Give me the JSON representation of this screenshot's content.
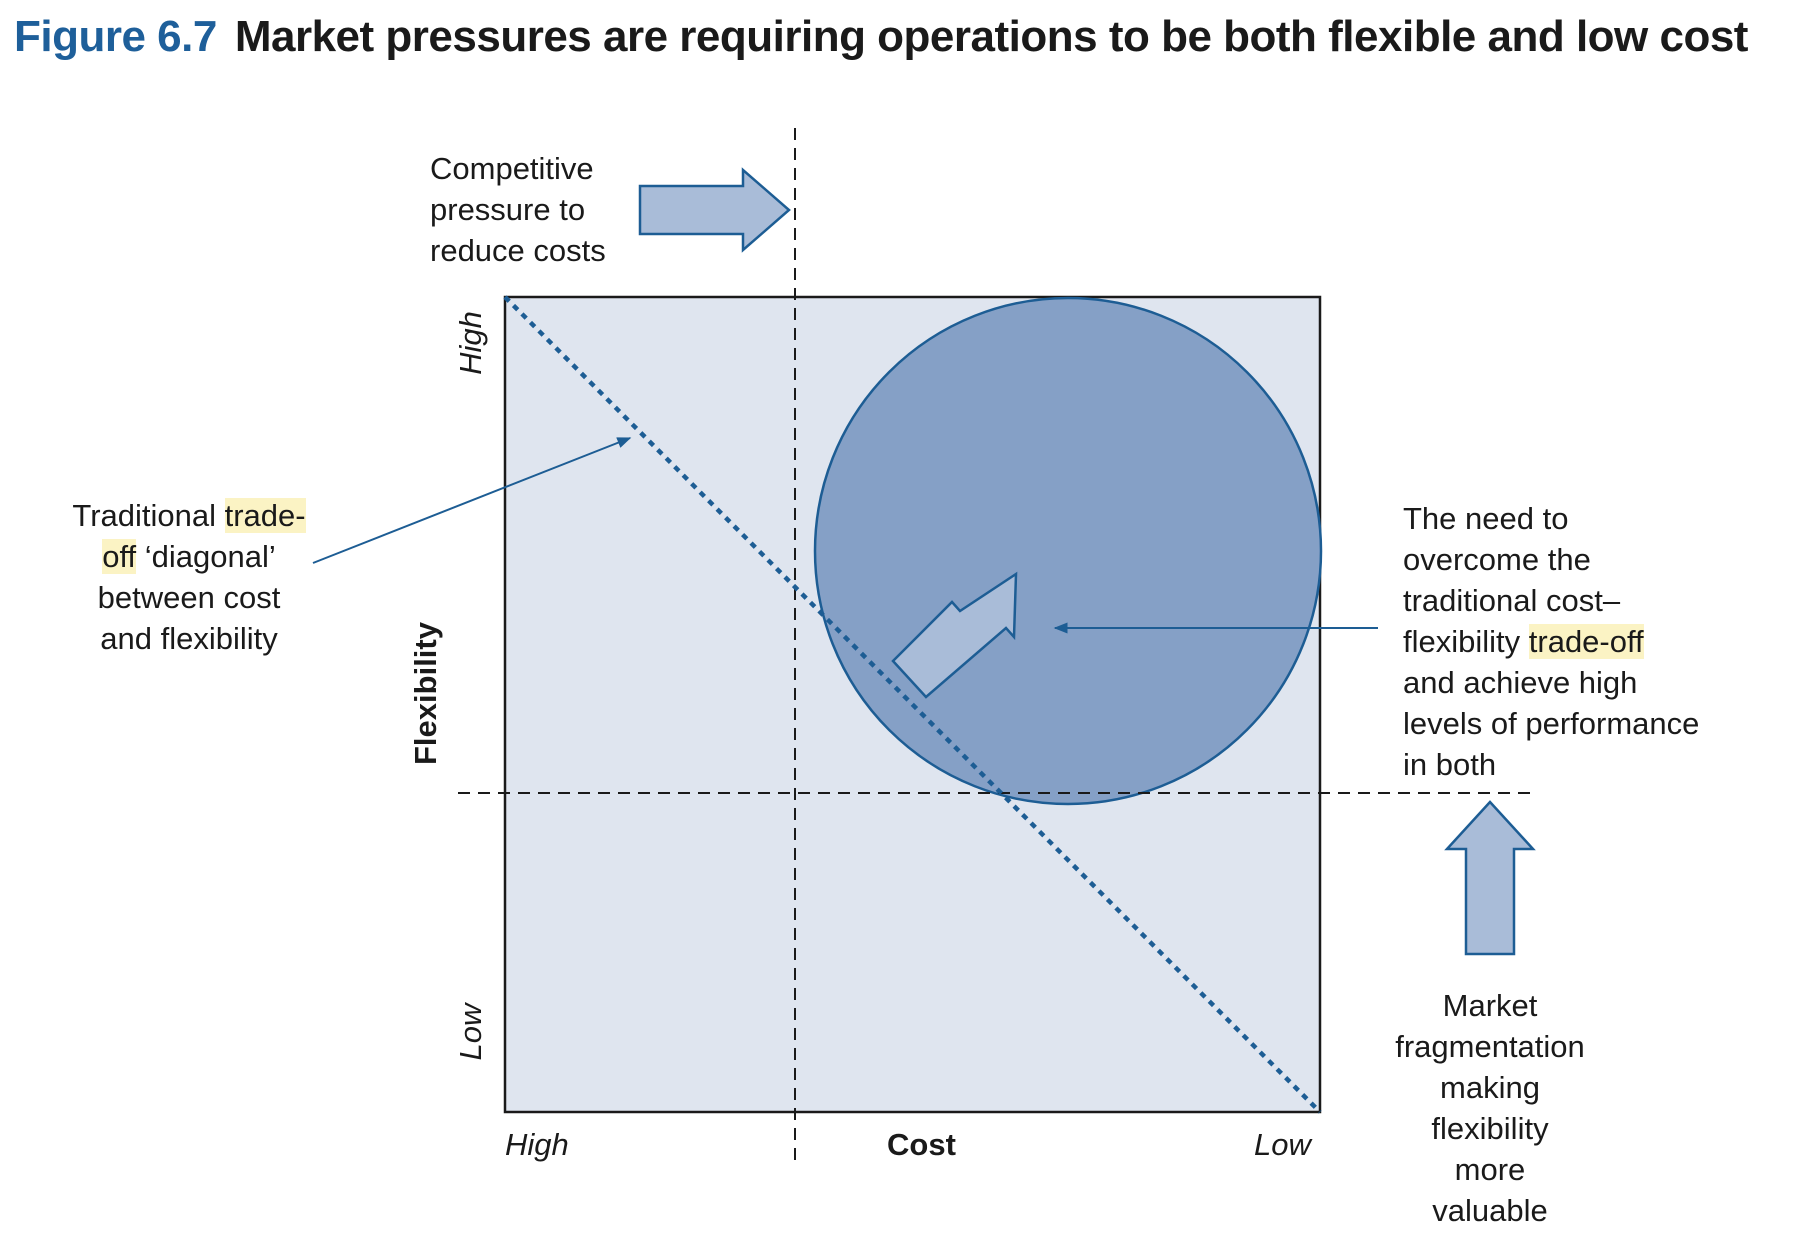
{
  "figure": {
    "label": "Figure 6.7",
    "title": "Market pressures are requiring operations to be both flexible and low cost"
  },
  "axes": {
    "x_title": "Cost",
    "x_left": "High",
    "x_right": "Low",
    "y_title": "Flexibility",
    "y_top": "High",
    "y_bottom": "Low"
  },
  "annotations": {
    "competitive": {
      "line1": "Competitive",
      "line2": "pressure to",
      "line3": "reduce costs"
    },
    "tradeoff": {
      "line1_a": "Traditional ",
      "line1_hl": "trade-",
      "line2_hl": "off",
      "line2_b": " ‘diagonal’",
      "line3": "between cost",
      "line4": "and flexibility"
    },
    "need": {
      "line1": "The need to",
      "line2": "overcome the",
      "line3": "traditional cost–",
      "line4_a": "flexibility ",
      "line4_hl": "trade-off",
      "line5": "and achieve high",
      "line6": "levels of performance",
      "line7": "in both"
    },
    "market": {
      "line1": "Market",
      "line2": "fragmentation",
      "line3": "making",
      "line4": "flexibility",
      "line5": "more",
      "line6": "valuable"
    }
  },
  "colors": {
    "title_blue": "#1e5f9a",
    "plot_fill": "#dfe5ef",
    "circle_fill": "#85a0c6",
    "circle_stroke": "#1d5d94",
    "arrow_fill": "#a9bcd8",
    "highlight": "#fbf3c4"
  }
}
